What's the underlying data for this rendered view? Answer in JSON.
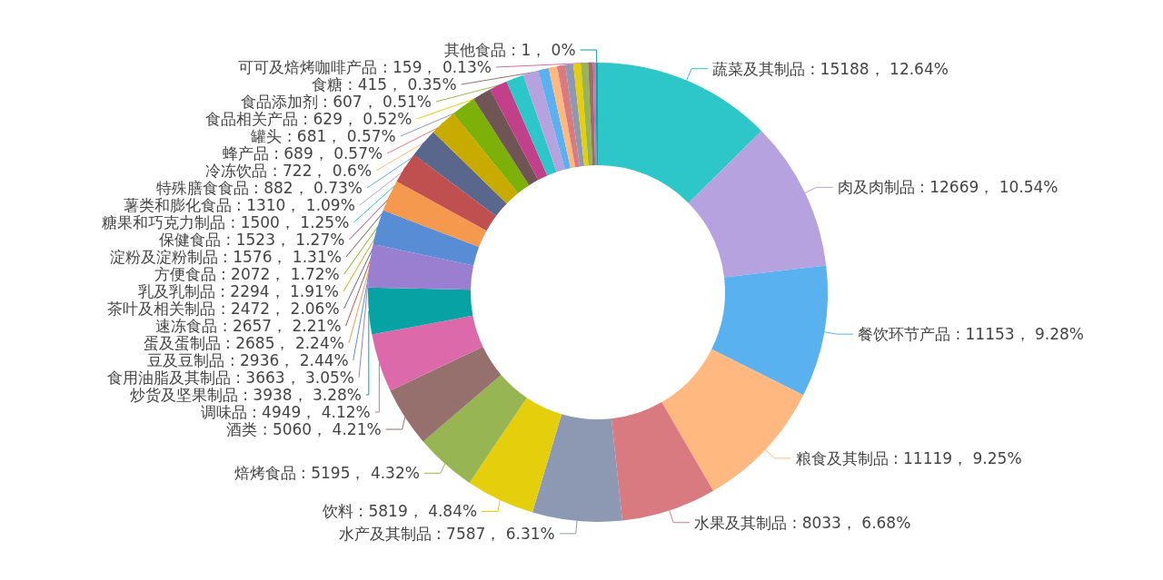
{
  "chart_data": {
    "type": "donut",
    "legend": false,
    "categories": [
      "蔬菜及其制品",
      "肉及肉制品",
      "餐饮环节产品",
      "粮食及其制品",
      "水果及其制品",
      "水产及其制品",
      "饮料",
      "焙烤食品",
      "酒类",
      "调味品",
      "炒货及坚果制品",
      "食用油脂及其制品",
      "豆及豆制品",
      "蛋及蛋制品",
      "速冻食品",
      "茶叶及相关制品",
      "乳及乳制品",
      "方便食品",
      "淀粉及淀粉制品",
      "保健食品",
      "糖果和巧克力制品",
      "薯类和膨化食品",
      "特殊膳食食品",
      "冷冻饮品",
      "蜂产品",
      "罐头",
      "食品相关产品",
      "食品添加剂",
      "食糖",
      "可可及焙烤咖啡产品",
      "其他食品"
    ],
    "values": [
      15188,
      12669,
      11153,
      11119,
      8033,
      7587,
      5819,
      5195,
      5060,
      4949,
      3938,
      3663,
      2936,
      2685,
      2657,
      2472,
      2294,
      2072,
      1576,
      1523,
      1500,
      1310,
      882,
      722,
      689,
      681,
      629,
      607,
      415,
      159,
      1
    ],
    "value_labels": [
      "15188， 12.64%",
      "12669， 10.54%",
      "11153， 9.28%",
      "11119， 9.25%",
      "8033， 6.68%",
      "7587， 6.31%",
      "5819， 4.84%",
      "5195， 4.32%",
      "5060， 4.21%",
      "4949， 4.12%",
      "3938， 3.28%",
      "3663， 3.05%",
      "2936， 2.44%",
      "2685， 2.24%",
      "2657， 2.21%",
      "2472， 2.06%",
      "2294， 1.91%",
      "2072， 1.72%",
      "1576， 1.31%",
      "1523， 1.27%",
      "1500， 1.25%",
      "1310， 1.09%",
      "882， 0.73%",
      "722， 0.6%",
      "689， 0.57%",
      "681， 0.57%",
      "629， 0.52%",
      "607， 0.51%",
      "415， 0.35%",
      "159， 0.13%",
      "1， 0%"
    ],
    "colors": [
      "#2ec7c9",
      "#b6a2de",
      "#5ab1ef",
      "#ffb980",
      "#d87a80",
      "#8d98b3",
      "#e5cf0d",
      "#97b552",
      "#95706d",
      "#dc69aa",
      "#07a2a4",
      "#9a7fd1",
      "#588dd5",
      "#f5994e",
      "#c05050",
      "#59678c",
      "#c9ab00",
      "#7eb00a",
      "#6f5553",
      "#c14089",
      "#2ec7c9",
      "#b6a2de",
      "#5ab1ef",
      "#ffb980",
      "#d87a80",
      "#8d98b3",
      "#e5cf0d",
      "#97b552",
      "#95706d",
      "#dc69aa",
      "#07a2a4"
    ]
  }
}
